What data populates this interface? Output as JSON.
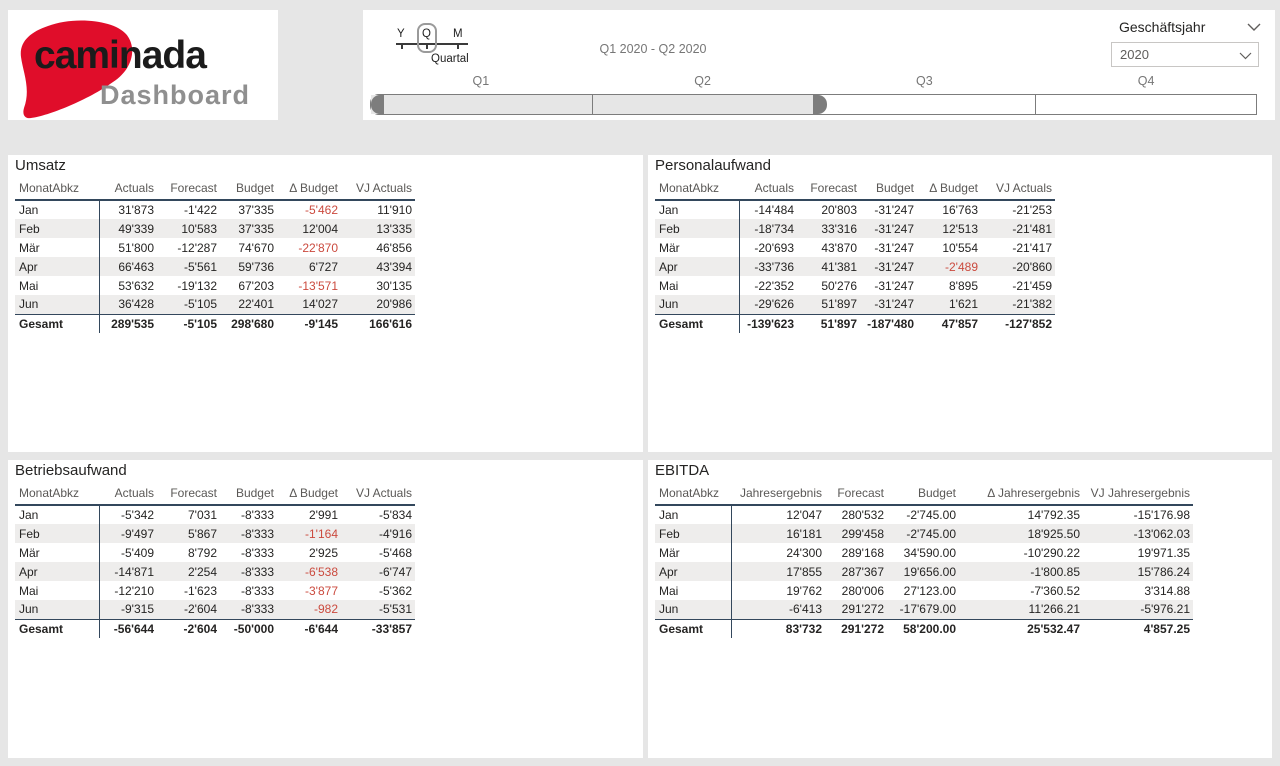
{
  "logo": {
    "brand": "caminada",
    "subtitle": "Dashboard"
  },
  "colors": {
    "logo_red": "#e00d2a",
    "negative_value": "#cb4a3e",
    "table_rule": "#33475c",
    "page_background": "#e6e6e6"
  },
  "timeline": {
    "granularity": {
      "options": [
        "Y",
        "Q",
        "M"
      ],
      "selected": "Q",
      "selected_label": "Quartal"
    },
    "range_label": "Q1 2020 - Q2 2020",
    "quarters": [
      {
        "label": "Q1",
        "selected": true
      },
      {
        "label": "Q2",
        "selected": true
      },
      {
        "label": "Q3",
        "selected": false
      },
      {
        "label": "Q4",
        "selected": false
      }
    ]
  },
  "year_slicer": {
    "title": "Geschäftsjahr",
    "value": "2020"
  },
  "panels": [
    {
      "title": "Umsatz",
      "columns": [
        "MonatAbkz",
        "Actuals",
        "Forecast",
        "Budget",
        "Δ Budget",
        "VJ Actuals"
      ],
      "rows": [
        {
          "label": "Jan",
          "values": [
            "31'873",
            "-1'422",
            "37'335",
            "-5'462",
            "11'910"
          ],
          "red": [
            3
          ]
        },
        {
          "label": "Feb",
          "values": [
            "49'339",
            "10'583",
            "37'335",
            "12'004",
            "13'335"
          ],
          "red": []
        },
        {
          "label": "Mär",
          "values": [
            "51'800",
            "-12'287",
            "74'670",
            "-22'870",
            "46'856"
          ],
          "red": [
            3
          ]
        },
        {
          "label": "Apr",
          "values": [
            "66'463",
            "-5'561",
            "59'736",
            "6'727",
            "43'394"
          ],
          "red": []
        },
        {
          "label": "Mai",
          "values": [
            "53'632",
            "-19'132",
            "67'203",
            "-13'571",
            "30'135"
          ],
          "red": [
            3
          ]
        },
        {
          "label": "Jun",
          "values": [
            "36'428",
            "-5'105",
            "22'401",
            "14'027",
            "20'986"
          ],
          "red": []
        }
      ],
      "total": {
        "label": "Gesamt",
        "values": [
          "289'535",
          "-5'105",
          "298'680",
          "-9'145",
          "166'616"
        ]
      }
    },
    {
      "title": "Personalaufwand",
      "columns": [
        "MonatAbkz",
        "Actuals",
        "Forecast",
        "Budget",
        "Δ Budget",
        "VJ Actuals"
      ],
      "rows": [
        {
          "label": "Jan",
          "values": [
            "-14'484",
            "20'803",
            "-31'247",
            "16'763",
            "-21'253"
          ],
          "red": []
        },
        {
          "label": "Feb",
          "values": [
            "-18'734",
            "33'316",
            "-31'247",
            "12'513",
            "-21'481"
          ],
          "red": []
        },
        {
          "label": "Mär",
          "values": [
            "-20'693",
            "43'870",
            "-31'247",
            "10'554",
            "-21'417"
          ],
          "red": []
        },
        {
          "label": "Apr",
          "values": [
            "-33'736",
            "41'381",
            "-31'247",
            "-2'489",
            "-20'860"
          ],
          "red": [
            3
          ]
        },
        {
          "label": "Mai",
          "values": [
            "-22'352",
            "50'276",
            "-31'247",
            "8'895",
            "-21'459"
          ],
          "red": []
        },
        {
          "label": "Jun",
          "values": [
            "-29'626",
            "51'897",
            "-31'247",
            "1'621",
            "-21'382"
          ],
          "red": []
        }
      ],
      "total": {
        "label": "Gesamt",
        "values": [
          "-139'623",
          "51'897",
          "-187'480",
          "47'857",
          "-127'852"
        ]
      }
    },
    {
      "title": "Betriebsaufwand",
      "columns": [
        "MonatAbkz",
        "Actuals",
        "Forecast",
        "Budget",
        "Δ Budget",
        "VJ Actuals"
      ],
      "rows": [
        {
          "label": "Jan",
          "values": [
            "-5'342",
            "7'031",
            "-8'333",
            "2'991",
            "-5'834"
          ],
          "red": []
        },
        {
          "label": "Feb",
          "values": [
            "-9'497",
            "5'867",
            "-8'333",
            "-1'164",
            "-4'916"
          ],
          "red": [
            3
          ]
        },
        {
          "label": "Mär",
          "values": [
            "-5'409",
            "8'792",
            "-8'333",
            "2'925",
            "-5'468"
          ],
          "red": []
        },
        {
          "label": "Apr",
          "values": [
            "-14'871",
            "2'254",
            "-8'333",
            "-6'538",
            "-6'747"
          ],
          "red": [
            3
          ]
        },
        {
          "label": "Mai",
          "values": [
            "-12'210",
            "-1'623",
            "-8'333",
            "-3'877",
            "-5'362"
          ],
          "red": [
            3
          ]
        },
        {
          "label": "Jun",
          "values": [
            "-9'315",
            "-2'604",
            "-8'333",
            "-982",
            "-5'531"
          ],
          "red": [
            3
          ]
        }
      ],
      "total": {
        "label": "Gesamt",
        "values": [
          "-56'644",
          "-2'604",
          "-50'000",
          "-6'644",
          "-33'857"
        ]
      }
    },
    {
      "title": "EBITDA",
      "columns": [
        "MonatAbkz",
        "Jahresergebnis",
        "Forecast",
        "Budget",
        "Δ Jahresergebnis",
        "VJ Jahresergebnis"
      ],
      "rows": [
        {
          "label": "Jan",
          "values": [
            "12'047",
            "280'532",
            "-2'745.00",
            "14'792.35",
            "-15'176.98"
          ],
          "red": []
        },
        {
          "label": "Feb",
          "values": [
            "16'181",
            "299'458",
            "-2'745.00",
            "18'925.50",
            "-13'062.03"
          ],
          "red": []
        },
        {
          "label": "Mär",
          "values": [
            "24'300",
            "289'168",
            "34'590.00",
            "-10'290.22",
            "19'971.35"
          ],
          "red": []
        },
        {
          "label": "Apr",
          "values": [
            "17'855",
            "287'367",
            "19'656.00",
            "-1'800.85",
            "15'786.24"
          ],
          "red": []
        },
        {
          "label": "Mai",
          "values": [
            "19'762",
            "280'006",
            "27'123.00",
            "-7'360.52",
            "3'314.88"
          ],
          "red": []
        },
        {
          "label": "Jun",
          "values": [
            "-6'413",
            "291'272",
            "-17'679.00",
            "11'266.21",
            "-5'976.21"
          ],
          "red": []
        }
      ],
      "total": {
        "label": "Gesamt",
        "values": [
          "83'732",
          "291'272",
          "58'200.00",
          "25'532.47",
          "4'857.25"
        ]
      }
    }
  ]
}
